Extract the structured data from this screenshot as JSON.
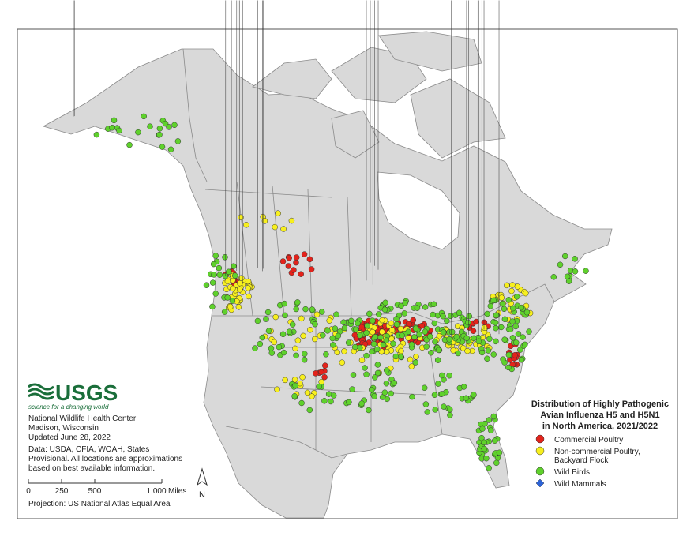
{
  "title_lines": [
    "Distribution of Highly Pathogenic",
    "Avian Influenza H5 and H5N1",
    "in North America, 2021/2022"
  ],
  "legend": [
    {
      "lines": [
        "Commercial Poultry"
      ],
      "color": "#e3231b",
      "shape": "circle"
    },
    {
      "lines": [
        "Non-commercial Poultry,",
        "Backyard Flock"
      ],
      "color": "#f7ef1e",
      "shape": "circle"
    },
    {
      "lines": [
        "Wild Birds"
      ],
      "color": "#5fd12c",
      "shape": "circle"
    },
    {
      "lines": [
        "Wild Mammals"
      ],
      "color": "#2d63d6",
      "shape": "diamond"
    }
  ],
  "logo": {
    "name": "USGS",
    "tagline": "science for a changing world"
  },
  "info_lines": [
    "National Wildlife Health Center",
    "Madison, Wisconsin",
    "Updated June 28, 2022"
  ],
  "data_note_lines": [
    "Data: USDA, CFIA, WOAH, States",
    "Provisional. All locations are approximations",
    "based on best available information."
  ],
  "scale": {
    "labels": [
      "0",
      "250",
      "500",
      "1,000"
    ],
    "unit": "Miles"
  },
  "north": "N",
  "projection": "Projection: US National Atlas Equal Area"
}
